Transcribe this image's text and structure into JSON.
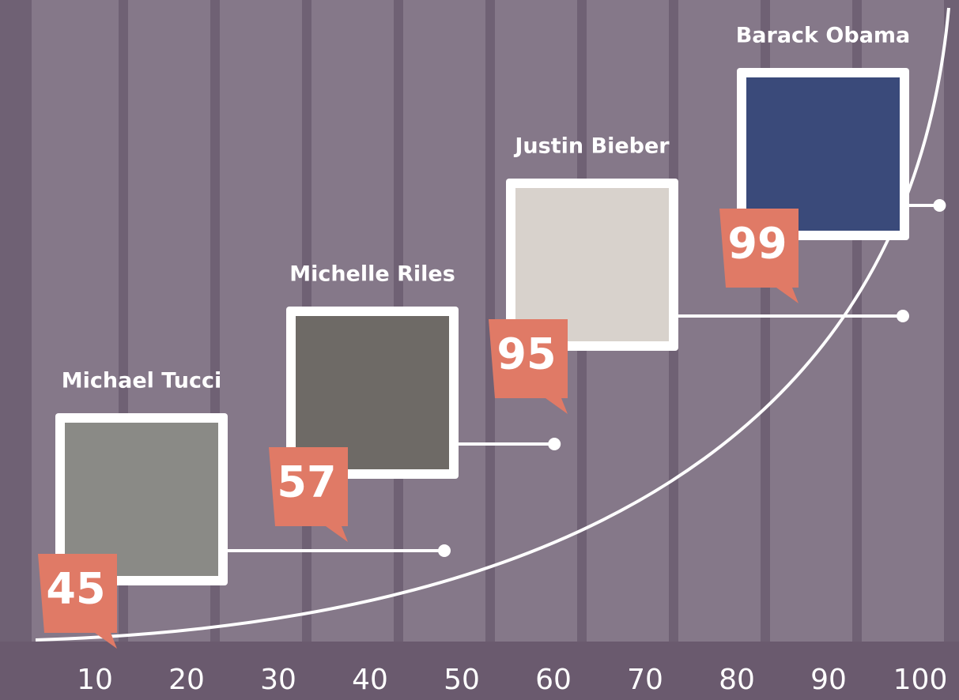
{
  "chart_data": {
    "type": "scatter",
    "categories": [
      "Michael Tucci",
      "Michelle Riles",
      "Justin Bieber",
      "Barack Obama"
    ],
    "values": [
      45,
      57,
      95,
      99
    ],
    "color": "#e07a66",
    "xlim": [
      0,
      100
    ],
    "xticks": [
      10,
      20,
      30,
      40,
      50,
      60,
      70,
      80,
      90,
      100
    ],
    "grid": true
  }
}
